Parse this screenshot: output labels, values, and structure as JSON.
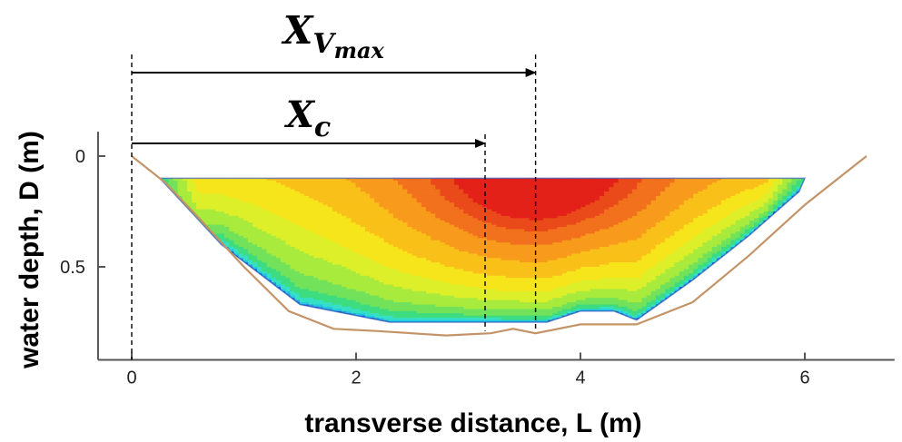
{
  "chart_data": {
    "type": "heatmap",
    "title": "",
    "xlabel": "transverse distance, L (m)",
    "ylabel": "water depth, D (m)",
    "xlim": [
      -0.3,
      6.8
    ],
    "ylim": [
      0,
      0.92
    ],
    "y_inverted": true,
    "x_ticks": [
      0,
      2,
      4,
      6
    ],
    "x_tick_labels": [
      "0",
      "2",
      "4",
      "6"
    ],
    "y_ticks": [
      0,
      0.5
    ],
    "y_tick_labels": [
      "0",
      "0.5"
    ],
    "bed_profile": [
      {
        "x": 0.0,
        "y": 0.0
      },
      {
        "x": 0.3,
        "y": 0.12
      },
      {
        "x": 0.6,
        "y": 0.28
      },
      {
        "x": 1.0,
        "y": 0.5
      },
      {
        "x": 1.4,
        "y": 0.7
      },
      {
        "x": 1.8,
        "y": 0.78
      },
      {
        "x": 2.2,
        "y": 0.79
      },
      {
        "x": 2.8,
        "y": 0.81
      },
      {
        "x": 3.2,
        "y": 0.8
      },
      {
        "x": 3.4,
        "y": 0.78
      },
      {
        "x": 3.6,
        "y": 0.8
      },
      {
        "x": 4.0,
        "y": 0.76
      },
      {
        "x": 4.5,
        "y": 0.76
      },
      {
        "x": 5.0,
        "y": 0.66
      },
      {
        "x": 5.5,
        "y": 0.45
      },
      {
        "x": 6.0,
        "y": 0.22
      },
      {
        "x": 6.55,
        "y": 0.0
      }
    ],
    "measured_section": [
      {
        "x": 0.25,
        "y": 0.1
      },
      {
        "x": 6.0,
        "y": 0.1
      },
      {
        "x": 5.95,
        "y": 0.16
      },
      {
        "x": 5.5,
        "y": 0.36
      },
      {
        "x": 5.0,
        "y": 0.56
      },
      {
        "x": 4.5,
        "y": 0.74
      },
      {
        "x": 4.3,
        "y": 0.7
      },
      {
        "x": 4.0,
        "y": 0.7
      },
      {
        "x": 3.7,
        "y": 0.75
      },
      {
        "x": 2.3,
        "y": 0.75
      },
      {
        "x": 1.5,
        "y": 0.67
      },
      {
        "x": 0.8,
        "y": 0.4
      },
      {
        "x": 0.25,
        "y": 0.1
      }
    ],
    "contour_bands": [
      {
        "color": "#2563d8",
        "y": 0.0
      },
      {
        "color": "#2d9ad6",
        "y": 0.04
      },
      {
        "color": "#22c7e6",
        "y": 0.08
      },
      {
        "color": "#36e0c4",
        "y": 0.12
      },
      {
        "color": "#3ddc80",
        "y": 0.18
      },
      {
        "color": "#72e25a",
        "y": 0.25
      },
      {
        "color": "#a9eb3c",
        "y": 0.33
      },
      {
        "color": "#dcef28",
        "y": 0.42
      },
      {
        "color": "#f7e51c",
        "y": 0.5
      },
      {
        "color": "#f9c019",
        "y": 0.59
      },
      {
        "color": "#f89a1b",
        "y": 0.69
      },
      {
        "color": "#f2711c",
        "y": 0.79
      },
      {
        "color": "#ea4a1a",
        "y": 0.88
      },
      {
        "color": "#e32119",
        "y": 0.95
      }
    ],
    "references": [
      {
        "name": "X_Vmax",
        "label_main": "X",
        "label_sub": "V",
        "label_subsub": "max",
        "x": 3.6
      },
      {
        "name": "X_c",
        "label_main": "X",
        "label_sub": "c",
        "label_subsub": "",
        "x": 3.15
      }
    ],
    "v_max_location": {
      "x": 3.6,
      "y": 0.18
    },
    "colors": {
      "bed": "#c49468",
      "axis": "#555555",
      "section_edge": "#1a3fb0"
    }
  }
}
